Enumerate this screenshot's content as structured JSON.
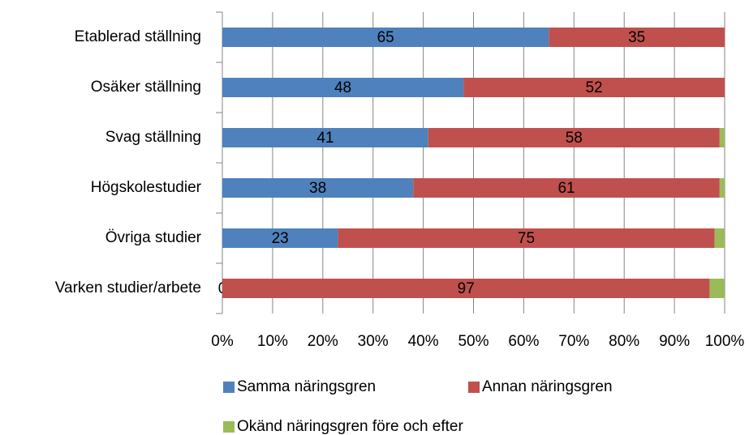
{
  "chart_data": {
    "type": "bar",
    "orientation": "horizontal",
    "stacked": true,
    "categories": [
      "Etablerad ställning",
      "Osäker ställning",
      "Svag ställning",
      "Högskolestudier",
      "Övriga studier",
      "Varken studier/arbete"
    ],
    "series": [
      {
        "name": "Samma näringsgren",
        "color": "#4f81bd",
        "values": [
          65,
          48,
          41,
          38,
          23,
          0
        ],
        "show_labels": true
      },
      {
        "name": "Annan näringsgren",
        "color": "#c0504d",
        "values": [
          35,
          52,
          58,
          61,
          75,
          97
        ],
        "show_labels": true
      },
      {
        "name": "Okänd näringsgren före och efter",
        "color": "#9bbb59",
        "values": [
          0,
          0,
          1,
          1,
          2,
          3
        ],
        "show_labels": false
      }
    ],
    "xlim": [
      0,
      100
    ],
    "xticks": [
      {
        "value": 0,
        "label": "0%"
      },
      {
        "value": 10,
        "label": "10%"
      },
      {
        "value": 20,
        "label": "20%"
      },
      {
        "value": 30,
        "label": "30%"
      },
      {
        "value": 40,
        "label": "40%"
      },
      {
        "value": 50,
        "label": "50%"
      },
      {
        "value": 60,
        "label": "60%"
      },
      {
        "value": 70,
        "label": "70%"
      },
      {
        "value": 80,
        "label": "80%"
      },
      {
        "value": 90,
        "label": "90%"
      },
      {
        "value": 100,
        "label": "100%"
      }
    ],
    "grid": true,
    "legend": "bottom"
  }
}
